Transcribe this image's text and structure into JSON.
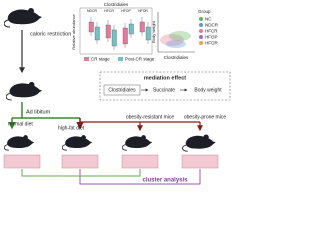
{
  "treatment": "caloric restriction",
  "boxplot": {
    "title": "Clostridiales",
    "y_label": "Relative abundance",
    "groups": [
      "NDCR",
      "HFCR",
      "HFOP",
      "HFOR"
    ],
    "legend": [
      {
        "name": "CR stage",
        "color": "#e8789a"
      },
      {
        "name": "Post-CR stage",
        "color": "#6cc4c8"
      }
    ]
  },
  "scatter": {
    "y_label": "Body weight",
    "x_label": "Clostridiales",
    "legend_title": "Group",
    "groups": [
      {
        "name": "NC",
        "color": "#5cb85c"
      },
      {
        "name": "NDCR",
        "color": "#5b9bd5"
      },
      {
        "name": "HFCR",
        "color": "#e8789a"
      },
      {
        "name": "HFOP",
        "color": "#9b6fc3"
      },
      {
        "name": "HFOR",
        "color": "#f0a04b"
      }
    ]
  },
  "mediation": {
    "title": "mediation effect",
    "nodes": [
      "Clostridiales",
      "Succinate",
      "Body weight"
    ]
  },
  "tree": {
    "root": "Ad libitum",
    "branches": [
      "normal diet",
      "high-fat diet"
    ],
    "outcomes": [
      "obesity-resistant mice",
      "obesity-prone mice"
    ]
  },
  "analysis": "cluster analysis"
}
